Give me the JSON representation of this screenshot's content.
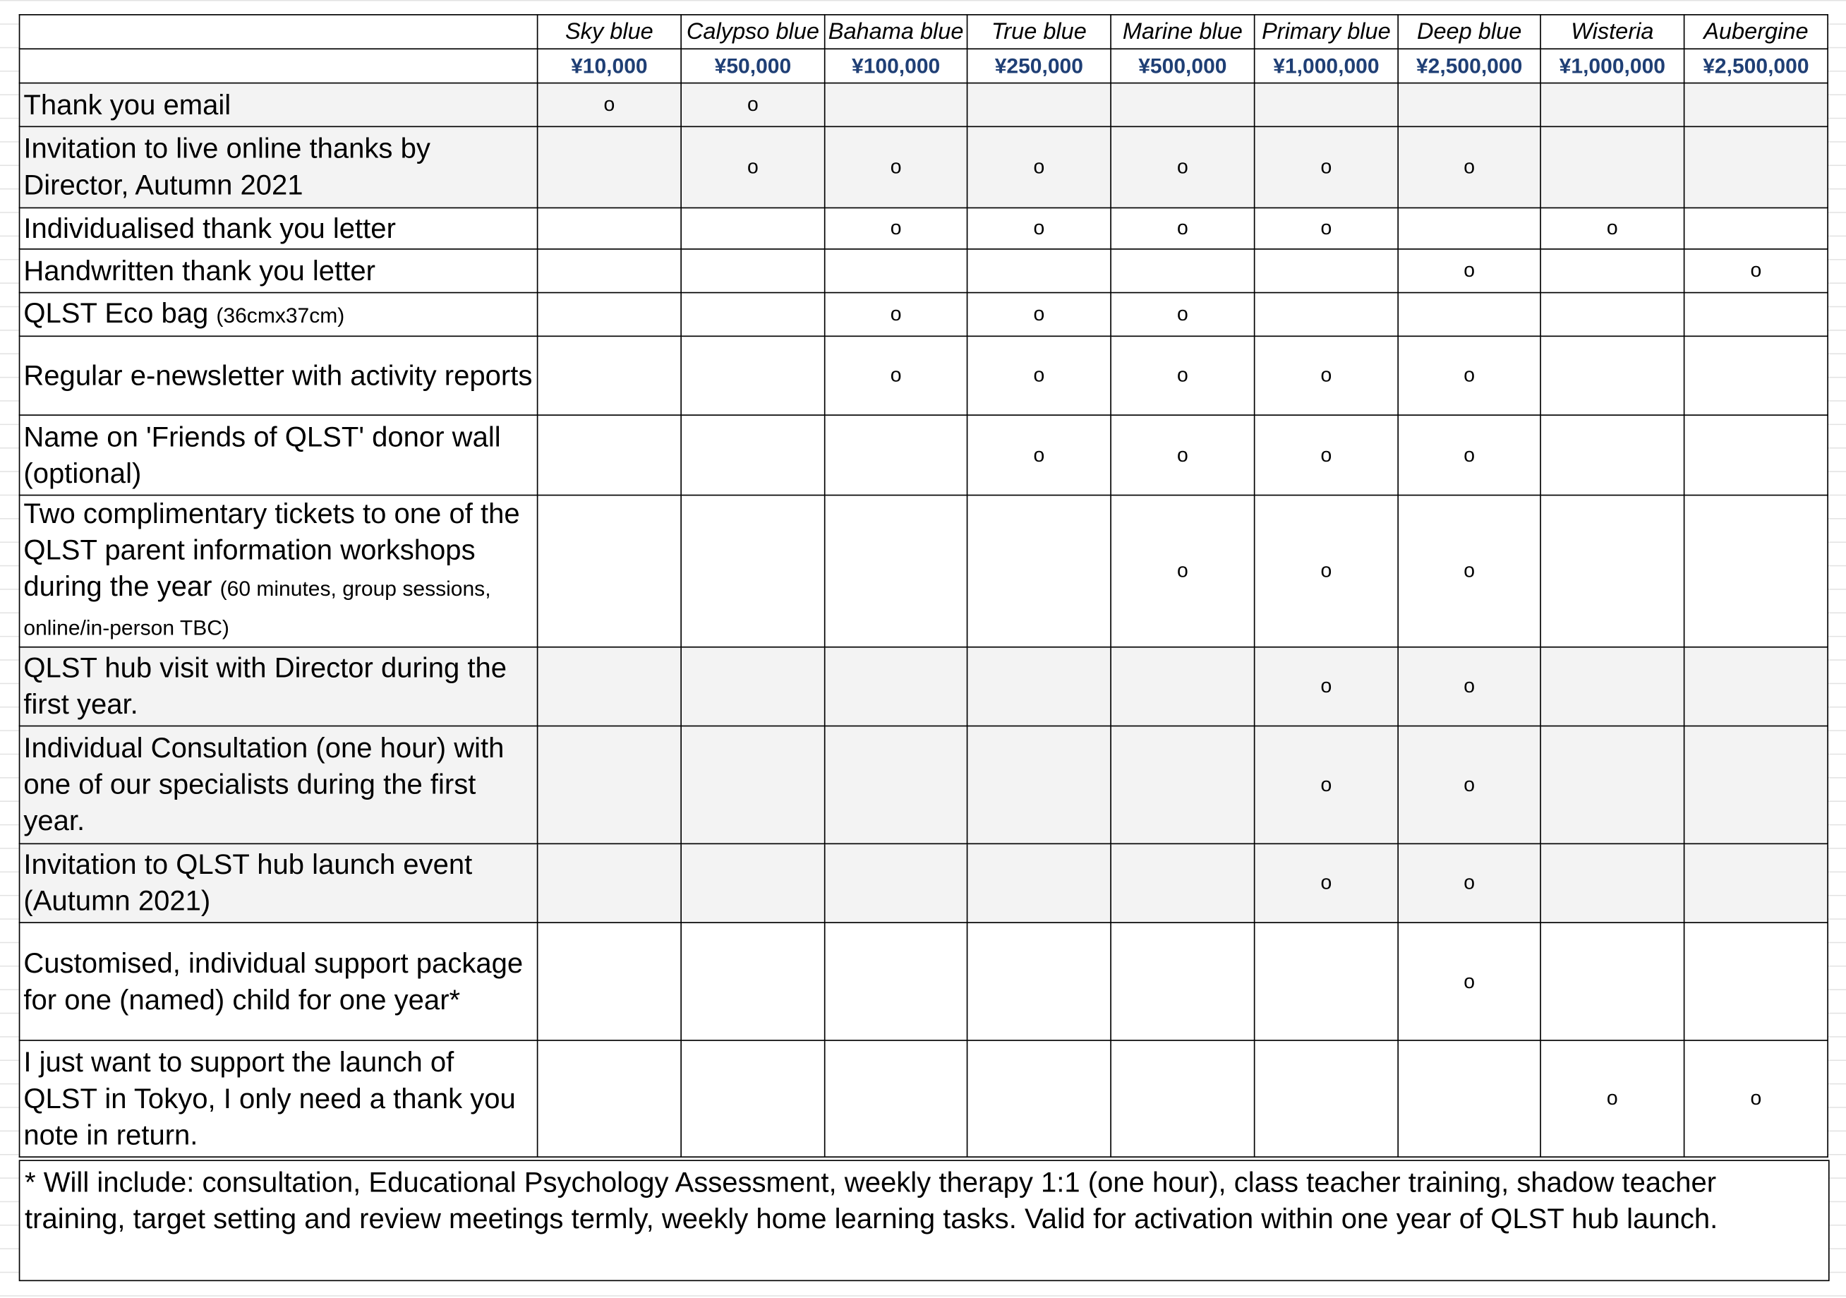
{
  "table": {
    "tiers": [
      {
        "name": "Sky blue",
        "price": "¥10,000"
      },
      {
        "name": "Calypso blue",
        "price": "¥50,000"
      },
      {
        "name": "Bahama blue",
        "price": "¥100,000"
      },
      {
        "name": "True blue",
        "price": "¥250,000"
      },
      {
        "name": "Marine blue",
        "price": "¥500,000"
      },
      {
        "name": "Primary blue",
        "price": "¥1,000,000"
      },
      {
        "name": "Deep blue",
        "price": "¥2,500,000"
      },
      {
        "name": "Wisteria",
        "price": "¥1,000,000"
      },
      {
        "name": "Aubergine",
        "price": "¥2,500,000"
      }
    ],
    "rows": [
      {
        "label": "Thank you email",
        "cells": [
          "o",
          "o",
          null,
          null,
          null,
          null,
          null,
          null,
          null
        ]
      },
      {
        "label": "Invitation to live online thanks by Director, Autumn 2021",
        "cells": [
          null,
          "o",
          "o",
          "o",
          "o",
          "o",
          "o",
          null,
          null
        ]
      },
      {
        "label": "Individualised thank you letter",
        "cells": [
          null,
          null,
          "o",
          "o",
          "o",
          "o",
          null,
          "o",
          null
        ]
      },
      {
        "label": "Handwritten thank you letter",
        "cells": [
          null,
          null,
          null,
          null,
          null,
          null,
          "o",
          null,
          "o"
        ]
      },
      {
        "label": "QLST Eco bag",
        "note": "(36cmx37cm)",
        "cells": [
          null,
          null,
          "o",
          "o",
          "o",
          null,
          null,
          null,
          null
        ]
      },
      {
        "label": "Regular e-newsletter with activity reports",
        "cells": [
          null,
          null,
          "o",
          "o",
          "o",
          "o",
          "o",
          null,
          null
        ]
      },
      {
        "label": "Name on 'Friends of QLST' donor wall (optional)",
        "cells": [
          null,
          null,
          null,
          "o",
          "o",
          "o",
          "o",
          null,
          null
        ]
      },
      {
        "label": "Two complimentary tickets to one of the QLST parent information workshops during the year",
        "note": "(60 minutes, group sessions, online/in-person TBC)",
        "cells": [
          null,
          null,
          null,
          null,
          "o",
          "o",
          "o",
          null,
          null
        ]
      },
      {
        "label": "QLST hub visit with Director during the first year.",
        "cells": [
          null,
          null,
          null,
          null,
          null,
          "o",
          "o",
          null,
          null
        ]
      },
      {
        "label": "Individual Consultation (one hour) with one of our specialists during the first year.",
        "cells": [
          null,
          null,
          null,
          null,
          null,
          "o",
          "o",
          null,
          null
        ]
      },
      {
        "label": "Invitation to QLST hub launch event (Autumn 2021)",
        "cells": [
          null,
          null,
          null,
          null,
          null,
          "o",
          "o",
          null,
          null
        ]
      },
      {
        "label": "Customised, individual support package for one (named) child for one year*",
        "cells": [
          null,
          null,
          null,
          null,
          null,
          null,
          "o",
          null,
          null
        ]
      },
      {
        "label": "I just want to support the launch of QLST in Tokyo, I only need a thank you note in return.",
        "cells": [
          null,
          null,
          null,
          null,
          null,
          null,
          null,
          "o",
          "o"
        ]
      }
    ],
    "footnote": "* Will include: consultation, Educational Psychology Assessment, weekly therapy 1:1 (one hour), class teacher training, shadow teacher training, target setting and review meetings termly, weekly home learning tasks. Valid for activation within one year of QLST hub launch."
  }
}
